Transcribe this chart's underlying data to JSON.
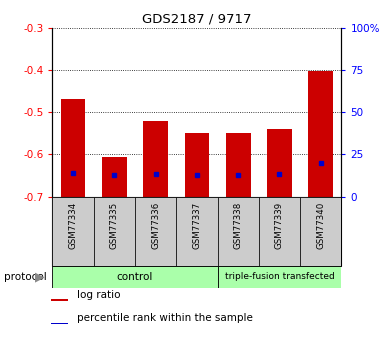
{
  "title": "GDS2187 / 9717",
  "samples": [
    "GSM77334",
    "GSM77335",
    "GSM77336",
    "GSM77337",
    "GSM77338",
    "GSM77339",
    "GSM77340"
  ],
  "log_ratio": [
    -0.47,
    -0.605,
    -0.52,
    -0.55,
    -0.55,
    -0.54,
    -0.402
  ],
  "percentile_rank": [
    14,
    13,
    13.5,
    13,
    13,
    13.5,
    20
  ],
  "ylim_left": [
    -0.7,
    -0.3
  ],
  "ylim_right": [
    0,
    100
  ],
  "yticks_left": [
    -0.7,
    -0.6,
    -0.5,
    -0.4,
    -0.3
  ],
  "yticks_right": [
    0,
    25,
    50,
    75,
    100
  ],
  "ytick_labels_right": [
    "0",
    "25",
    "50",
    "75",
    "100%"
  ],
  "bar_color": "#cc0000",
  "percentile_color": "#0000cc",
  "bar_width": 0.6,
  "control_indices": [
    0,
    1,
    2,
    3
  ],
  "tf_indices": [
    4,
    5,
    6
  ],
  "control_label": "control",
  "tf_label": "triple-fusion transfected",
  "group_color": "#aaffaa",
  "protocol_label": "protocol",
  "grid_color": "black",
  "background_color": "white",
  "xlabel_area_color": "#cccccc",
  "bar_baseline": -0.7,
  "legend_labels": [
    "log ratio",
    "percentile rank within the sample"
  ]
}
